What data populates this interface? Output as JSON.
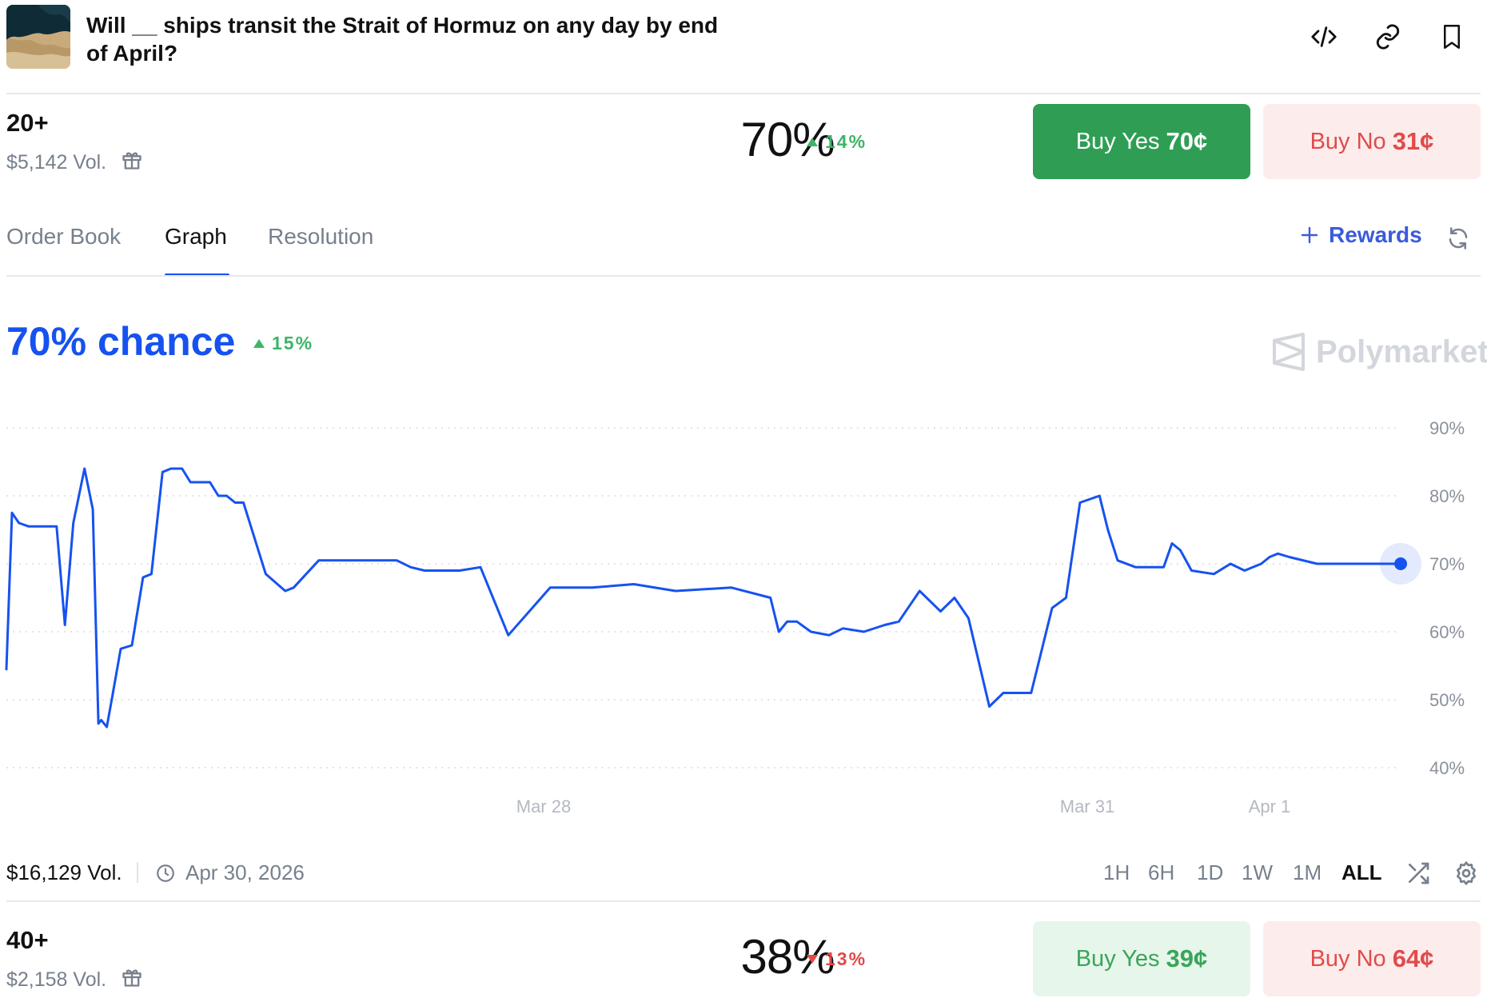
{
  "market": {
    "title": "Will __ ships transit the Strait of Hormuz on any day by end of April?",
    "header_icons": [
      "embed-code-icon",
      "link-icon",
      "bookmark-icon"
    ]
  },
  "outcomes": [
    {
      "label": "20+",
      "volume": "$5,142 Vol.",
      "percent": "70%",
      "change": "14%",
      "change_dir": "up",
      "buy_yes_label": "Buy Yes",
      "buy_yes_price": "70¢",
      "buy_no_label": "Buy No",
      "buy_no_price": "31¢"
    },
    {
      "label": "40+",
      "volume": "$2,158 Vol.",
      "percent": "38%",
      "change": "13%",
      "change_dir": "down",
      "buy_yes_label": "Buy Yes",
      "buy_yes_price": "39¢",
      "buy_no_label": "Buy No",
      "buy_no_price": "64¢"
    }
  ],
  "tabs": {
    "items": [
      "Order Book",
      "Graph",
      "Resolution"
    ],
    "active": "Graph",
    "rewards_label": "Rewards"
  },
  "chart_header": {
    "chance": "70% chance",
    "change": "15%",
    "watermark": "Polymarket"
  },
  "footer": {
    "volume": "$16,129 Vol.",
    "end_date": "Apr 30, 2026",
    "ranges": [
      "1H",
      "6H",
      "1D",
      "1W",
      "1M",
      "ALL"
    ],
    "active_range": "ALL"
  },
  "colors": {
    "accent_blue": "#1652f0",
    "up_green": "#3db468",
    "down_red": "#e64800",
    "buy_yes_bg": "#2f9e54",
    "buy_no_bg": "#fdecec"
  },
  "chart_data": {
    "type": "line",
    "title": "",
    "xlabel": "",
    "ylabel": "",
    "ylim": [
      38,
      94
    ],
    "y_ticks": [
      "40%",
      "50%",
      "60%",
      "70%",
      "80%",
      "90%"
    ],
    "x_tick_labels": [
      "Mar 28",
      "Mar 31",
      "Apr 1"
    ],
    "grid": "horizontal dotted",
    "series": [
      {
        "name": "",
        "color": "#1652f0",
        "x": [
          0,
          0.004,
          0.009,
          0.016,
          0.036,
          0.042,
          0.048,
          0.056,
          0.062,
          0.066,
          0.068,
          0.072,
          0.076,
          0.082,
          0.09,
          0.098,
          0.104,
          0.112,
          0.118,
          0.126,
          0.132,
          0.146,
          0.152,
          0.158,
          0.164,
          0.17,
          0.186,
          0.2,
          0.206,
          0.224,
          0.232,
          0.25,
          0.262,
          0.27,
          0.28,
          0.29,
          0.3,
          0.31,
          0.325,
          0.34,
          0.36,
          0.39,
          0.42,
          0.45,
          0.48,
          0.52,
          0.548,
          0.554,
          0.56,
          0.567,
          0.577,
          0.59,
          0.6,
          0.615,
          0.63,
          0.64,
          0.655,
          0.67,
          0.68,
          0.69,
          0.705,
          0.715,
          0.725,
          0.735,
          0.75,
          0.76,
          0.77,
          0.784,
          0.79,
          0.797,
          0.81,
          0.82,
          0.83,
          0.836,
          0.842,
          0.85,
          0.866,
          0.878,
          0.888,
          0.9,
          0.906,
          0.912,
          0.92,
          0.94,
          0.95,
          0.958,
          0.964,
          0.972,
          0.98,
          0.986,
          1.0
        ],
        "values": [
          54.5,
          77.5,
          76,
          75.5,
          75.5,
          61,
          76,
          84,
          78,
          46.5,
          47,
          46,
          50.5,
          57.5,
          58,
          68,
          68.5,
          83.5,
          84,
          84,
          82,
          82,
          80,
          80,
          79,
          79,
          68.5,
          66,
          66.5,
          70.5,
          70.5,
          70.5,
          70.5,
          70.5,
          70.5,
          69.5,
          69,
          69,
          69,
          69.5,
          59.5,
          66.5,
          66.5,
          67,
          66,
          66.5,
          65,
          60,
          61.5,
          61.5,
          60,
          59.5,
          60.5,
          60,
          61,
          61.5,
          66,
          63,
          65,
          62,
          49,
          51,
          51,
          51,
          63.5,
          65,
          79,
          80,
          75,
          70.5,
          69.5,
          69.5,
          69.5,
          73,
          72,
          69,
          68.5,
          70,
          69,
          70,
          71,
          71.5,
          71,
          70,
          70,
          70,
          70,
          70,
          70,
          70,
          70
        ]
      }
    ],
    "last_value": 70
  }
}
